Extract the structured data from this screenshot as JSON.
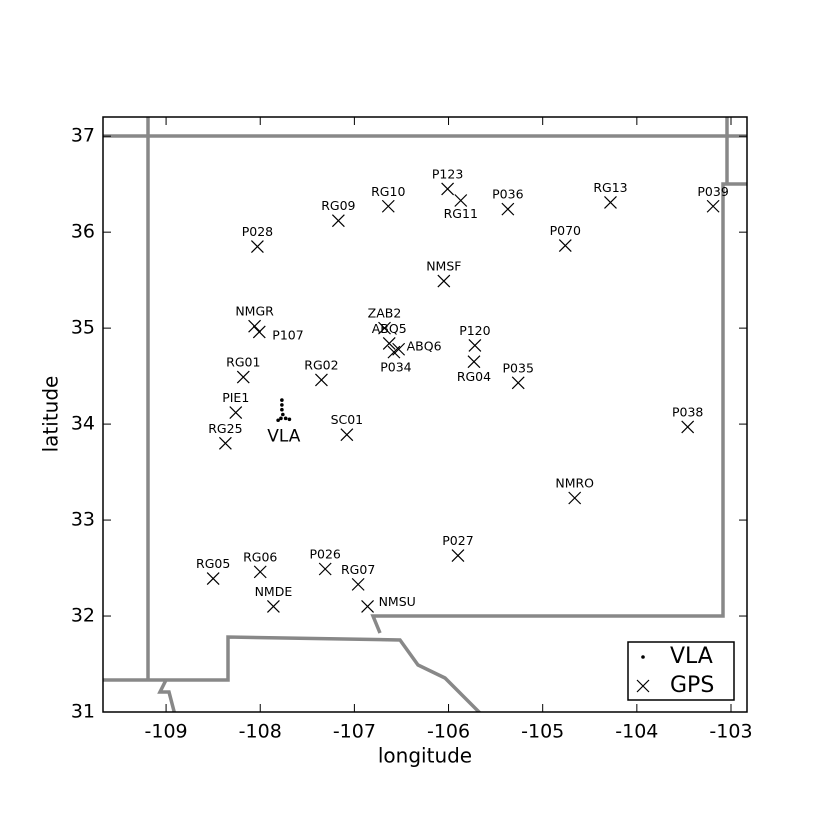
{
  "chart_data": {
    "type": "scatter",
    "xlabel": "longitude",
    "ylabel": "latitude",
    "xlim": [
      -109.67,
      -102.83
    ],
    "ylim": [
      31,
      37.2
    ],
    "xticks": [
      -109,
      -108,
      -107,
      -106,
      -105,
      -104,
      -103
    ],
    "yticks": [
      31,
      32,
      33,
      34,
      35,
      36,
      37
    ],
    "legend": "lower right",
    "series": [
      {
        "name": "VLA",
        "color": "#000000",
        "marker": "dot",
        "x": [
          -107.77,
          -107.77,
          -107.77,
          -107.76,
          -107.78,
          -107.81,
          -107.73,
          -107.69
        ],
        "y": [
          34.25,
          34.2,
          34.15,
          34.1,
          34.06,
          34.04,
          34.06,
          34.05
        ]
      },
      {
        "name": "GPS",
        "color": "#000000",
        "marker": "x",
        "labels": [
          "P123",
          "RG11",
          "RG10",
          "RG09",
          "P036",
          "RG13",
          "P039",
          "P028",
          "P070",
          "NMSF",
          "NMGR",
          "P107",
          "ZAB2",
          "ABQ5",
          "ABQ6",
          "P034",
          "P120",
          "RG04",
          "P035",
          "RG01",
          "RG02",
          "PIE1",
          "RG25",
          "SC01",
          "P038",
          "NMRO",
          "P027",
          "RG05",
          "RG06",
          "P026",
          "RG07",
          "NMDE",
          "NMSU"
        ],
        "x": [
          -106.01,
          -105.87,
          -106.64,
          -107.17,
          -105.37,
          -104.28,
          -103.19,
          -108.03,
          -104.76,
          -106.05,
          -108.06,
          -108.01,
          -106.68,
          -106.63,
          -106.53,
          -106.58,
          -105.72,
          -105.73,
          -105.26,
          -108.18,
          -107.35,
          -108.26,
          -108.37,
          -107.08,
          -103.46,
          -104.66,
          -105.9,
          -108.5,
          -108.0,
          -107.31,
          -106.96,
          -107.86,
          -106.86
        ],
        "y": [
          36.45,
          36.33,
          36.27,
          36.12,
          36.24,
          36.31,
          36.27,
          35.85,
          35.86,
          35.49,
          35.02,
          34.96,
          35.0,
          34.84,
          34.78,
          34.75,
          34.82,
          34.65,
          34.43,
          34.49,
          34.46,
          34.12,
          33.8,
          33.89,
          33.97,
          33.23,
          32.63,
          32.39,
          32.46,
          32.49,
          32.33,
          32.1,
          32.1
        ]
      }
    ]
  }
}
